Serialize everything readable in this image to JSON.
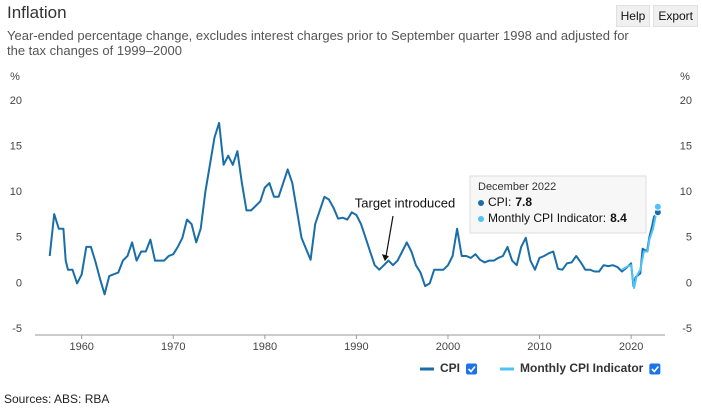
{
  "chart_data": {
    "type": "line",
    "title": "Inflation",
    "subtitle": "Year-ended percentage change, excludes interest charges prior to September quarter 1998 and adjusted for the tax changes of 1999–2000",
    "buttons": [
      "Help",
      "Export"
    ],
    "y_unit": "%",
    "sources": "Sources: ABS: RBA",
    "xlim": [
      1954.9,
      2023.7
    ],
    "xticks": [
      1960,
      1970,
      1980,
      1990,
      2000,
      2010,
      2020
    ],
    "ylim": [
      -5,
      20
    ],
    "yticks": [
      -5,
      0,
      5,
      10,
      15,
      20
    ],
    "y2lim": [
      -5,
      20
    ],
    "y2ticks": [
      -5,
      0,
      5,
      10,
      15,
      20
    ],
    "grid": false,
    "series": [
      {
        "name": "CPI",
        "color": "#1a6ea8",
        "x": [
          1956.5,
          1957,
          1957.5,
          1958,
          1958.25,
          1958.5,
          1959,
          1959.5,
          1960,
          1960.5,
          1961,
          1961.5,
          1962,
          1962.5,
          1963,
          1964,
          1964.5,
          1965,
          1965.5,
          1966,
          1966.5,
          1967,
          1967.5,
          1968,
          1969,
          1969.5,
          1970,
          1970.5,
          1971,
          1971.5,
          1972,
          1972.5,
          1973,
          1973.5,
          1974,
          1974.5,
          1975,
          1975.5,
          1976,
          1976.5,
          1977,
          1977.5,
          1978,
          1978.5,
          1979,
          1979.5,
          1980,
          1980.5,
          1981,
          1981.5,
          1982,
          1982.5,
          1983,
          1983.5,
          1984,
          1984.5,
          1985,
          1985.5,
          1986,
          1986.5,
          1987,
          1987.5,
          1988,
          1988.5,
          1989,
          1989.5,
          1990,
          1990.5,
          1991,
          1991.5,
          1992,
          1992.5,
          1993,
          1993.5,
          1994,
          1994.5,
          1995,
          1995.5,
          1996,
          1996.5,
          1997,
          1997.5,
          1998,
          1998.5,
          1999,
          1999.5,
          2000,
          2000.5,
          2001,
          2001.5,
          2002,
          2002.5,
          2003,
          2003.5,
          2004,
          2004.5,
          2005,
          2005.5,
          2006,
          2006.5,
          2007,
          2007.5,
          2008,
          2008.5,
          2009,
          2009.5,
          2010,
          2010.5,
          2011,
          2011.5,
          2012,
          2012.5,
          2013,
          2013.5,
          2014,
          2014.5,
          2015,
          2015.5,
          2016,
          2016.5,
          2017,
          2017.5,
          2018,
          2018.5,
          2019,
          2019.5,
          2020,
          2020.25,
          2020.5,
          2021,
          2021.25,
          2021.75,
          2022,
          2022.25,
          2022.5,
          2022.92
        ],
        "values": [
          3,
          7.6,
          6,
          6,
          2.5,
          1.5,
          1.5,
          0,
          1,
          4,
          4,
          2.4,
          0.5,
          -1.2,
          0.8,
          1.2,
          2.5,
          3,
          4.5,
          2.5,
          3.5,
          3.5,
          4.8,
          2.5,
          2.5,
          3,
          3.2,
          4,
          5,
          7,
          6.5,
          4.5,
          6,
          10,
          13,
          16,
          17.6,
          13,
          14,
          13,
          14.5,
          11,
          8,
          8,
          8.5,
          9,
          10.5,
          11,
          9.5,
          9.5,
          11,
          12.5,
          11,
          8,
          5,
          3.8,
          2.6,
          6.5,
          8,
          9.5,
          9.2,
          8.3,
          7.1,
          7.2,
          7,
          7.8,
          7.5,
          6.5,
          5,
          3.5,
          2,
          1.5,
          2,
          2.5,
          2,
          2.5,
          3.5,
          4.5,
          3.5,
          2,
          1.2,
          -0.3,
          0,
          1.5,
          1.5,
          1.5,
          2,
          3,
          6,
          3,
          3,
          2.8,
          3.2,
          2.6,
          2.3,
          2.5,
          2.5,
          2.8,
          3,
          4,
          2.5,
          2,
          4,
          5,
          2.5,
          1.5,
          2.8,
          3,
          3.3,
          3.5,
          1.6,
          1.5,
          2.2,
          2.3,
          3,
          2.3,
          1.5,
          1.5,
          1.3,
          1.3,
          2,
          1.9,
          2,
          1.8,
          1.3,
          1.7,
          2.2,
          -0.3,
          0.7,
          1.1,
          3.8,
          3.5,
          5.1,
          6.1,
          7.3,
          7.8
        ]
      },
      {
        "name": "Monthly CPI Indicator",
        "color": "#4fc3f7",
        "x": [
          2019,
          2019.5,
          2020,
          2020.33,
          2020.6,
          2021,
          2021.4,
          2021.8,
          2022,
          2022.4,
          2022.7,
          2022.92
        ],
        "values": [
          1.5,
          1.8,
          2,
          -0.5,
          0.8,
          1.5,
          3.5,
          3.5,
          4.8,
          6,
          7.5,
          8.4
        ]
      }
    ],
    "annotation": {
      "text": "Target introduced",
      "x": 1993,
      "y": 2
    },
    "tooltip": {
      "title": "December 2022",
      "items": [
        {
          "label": "CPI:",
          "value": 7.8
        },
        {
          "label": "Monthly CPI Indicator:",
          "value": 8.4
        }
      ]
    }
  }
}
